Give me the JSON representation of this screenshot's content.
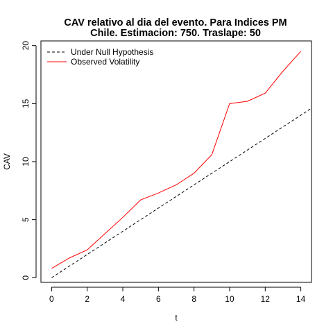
{
  "chart_data": {
    "type": "line",
    "title": "CAV relativo al dia del evento. Para Indices PM",
    "subtitle": "Chile. Estimacion: 750. Traslape: 50",
    "xlabel": "t",
    "ylabel": "CAV",
    "xlim": [
      -0.6,
      14.6
    ],
    "ylim": [
      -0.4,
      20.4
    ],
    "x_ticks": [
      0,
      2,
      4,
      6,
      8,
      10,
      12,
      14
    ],
    "y_ticks": [
      0,
      5,
      10,
      15,
      20
    ],
    "grid": false,
    "legend_position": "top-left",
    "series": [
      {
        "name": "Under Null Hypothesis",
        "color": "#000000",
        "line_style": "dashed",
        "x": [
          0,
          14.6
        ],
        "y": [
          0,
          14.6
        ]
      },
      {
        "name": "Observed Volatility",
        "color": "#ff0000",
        "line_style": "solid",
        "x": [
          0,
          1,
          2,
          3,
          4,
          5,
          6,
          7,
          8,
          9,
          10,
          11,
          12,
          13,
          14
        ],
        "y": [
          0.8,
          1.7,
          2.4,
          3.8,
          5.2,
          6.7,
          7.3,
          8.0,
          9.0,
          10.6,
          15.0,
          15.2,
          15.9,
          17.8,
          19.5
        ]
      }
    ]
  }
}
